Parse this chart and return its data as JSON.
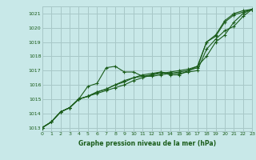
{
  "title": "Graphe pression niveau de la mer (hPa)",
  "bg_color": "#c8e8e8",
  "grid_color": "#a8c8c8",
  "line_color": "#1a5c1a",
  "xlim": [
    0,
    23
  ],
  "ylim": [
    1012.75,
    1021.5
  ],
  "yticks": [
    1013,
    1014,
    1015,
    1016,
    1017,
    1018,
    1019,
    1020,
    1021
  ],
  "xticks": [
    0,
    1,
    2,
    3,
    4,
    5,
    6,
    7,
    8,
    9,
    10,
    11,
    12,
    13,
    14,
    15,
    16,
    17,
    18,
    19,
    20,
    21,
    22,
    23
  ],
  "series": [
    [
      1013.0,
      1013.4,
      1014.1,
      1014.4,
      1015.0,
      1015.9,
      1016.1,
      1017.2,
      1017.3,
      1016.9,
      1016.9,
      1016.6,
      1016.6,
      1016.7,
      1016.8,
      1016.9,
      1017.0,
      1017.2,
      1019.0,
      1019.5,
      1020.5,
      1021.0,
      1021.2,
      1021.3
    ],
    [
      1013.0,
      1013.4,
      1014.1,
      1014.4,
      1015.0,
      1015.2,
      1015.4,
      1015.6,
      1015.8,
      1016.0,
      1016.3,
      1016.5,
      1016.7,
      1016.8,
      1016.9,
      1017.0,
      1017.1,
      1017.3,
      1018.0,
      1019.0,
      1019.5,
      1020.4,
      1021.0,
      1021.3
    ],
    [
      1013.0,
      1013.4,
      1014.1,
      1014.4,
      1015.0,
      1015.2,
      1015.5,
      1015.7,
      1016.0,
      1016.3,
      1016.5,
      1016.7,
      1016.8,
      1016.9,
      1016.8,
      1016.8,
      1016.9,
      1017.0,
      1018.5,
      1019.2,
      1019.8,
      1020.1,
      1020.8,
      1021.3
    ],
    [
      1013.0,
      1013.4,
      1014.1,
      1014.4,
      1015.0,
      1015.2,
      1015.5,
      1015.7,
      1016.0,
      1016.2,
      1016.5,
      1016.6,
      1016.7,
      1016.9,
      1016.7,
      1016.7,
      1017.0,
      1017.3,
      1019.0,
      1019.4,
      1020.4,
      1020.9,
      1021.1,
      1021.3
    ]
  ]
}
